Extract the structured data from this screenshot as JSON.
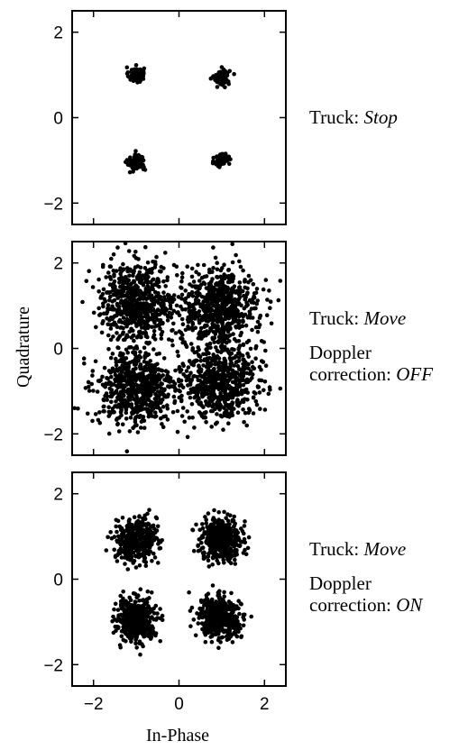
{
  "chart_data": [
    {
      "type": "scatter",
      "xlim": [
        -2.5,
        2.5
      ],
      "ylim": [
        -2.5,
        2.5
      ],
      "yticks": [
        -2,
        0,
        2
      ],
      "xticks": [
        -2,
        0,
        2
      ],
      "show_xtick_labels": false,
      "grid": false,
      "clusters": [
        {
          "x": -1.0,
          "y": 1.0,
          "spread": 0.09,
          "n": 90
        },
        {
          "x": 1.0,
          "y": 0.95,
          "spread": 0.09,
          "n": 90
        },
        {
          "x": -1.0,
          "y": -1.05,
          "spread": 0.1,
          "n": 90
        },
        {
          "x": 1.0,
          "y": -1.0,
          "spread": 0.08,
          "n": 90
        }
      ],
      "annotation": {
        "prefix": "Truck: ",
        "state": "Stop",
        "line2": "",
        "line3_prefix": "",
        "line3_state": ""
      }
    },
    {
      "type": "scatter",
      "xlim": [
        -2.5,
        2.5
      ],
      "ylim": [
        -2.5,
        2.5
      ],
      "yticks": [
        -2,
        0,
        2
      ],
      "xticks": [
        -2,
        0,
        2
      ],
      "show_xtick_labels": false,
      "grid": false,
      "clusters": [
        {
          "x": -0.95,
          "y": 1.1,
          "spread": 0.45,
          "n": 650
        },
        {
          "x": 0.95,
          "y": 0.95,
          "spread": 0.45,
          "n": 650
        },
        {
          "x": -1.0,
          "y": -0.95,
          "spread": 0.45,
          "n": 650
        },
        {
          "x": 0.95,
          "y": -0.75,
          "spread": 0.45,
          "n": 650
        }
      ],
      "annotation": {
        "prefix": "Truck: ",
        "state": "Move",
        "line2": "Doppler",
        "line3_prefix": "correction: ",
        "line3_state": "OFF"
      }
    },
    {
      "type": "scatter",
      "xlim": [
        -2.5,
        2.5
      ],
      "ylim": [
        -2.5,
        2.5
      ],
      "yticks": [
        -2,
        0,
        2
      ],
      "xticks": [
        -2,
        0,
        2
      ],
      "show_xtick_labels": true,
      "grid": false,
      "clusters": [
        {
          "x": -1.0,
          "y": 0.9,
          "spread": 0.24,
          "n": 420
        },
        {
          "x": 1.0,
          "y": 0.95,
          "spread": 0.24,
          "n": 420
        },
        {
          "x": -1.0,
          "y": -0.95,
          "spread": 0.24,
          "n": 420
        },
        {
          "x": 0.95,
          "y": -0.9,
          "spread": 0.24,
          "n": 420
        }
      ],
      "annotation": {
        "prefix": "Truck: ",
        "state": "Move",
        "line2": "Doppler",
        "line3_prefix": "correction: ",
        "line3_state": "ON"
      }
    }
  ],
  "ylabel": "Quadrature",
  "xlabel": "In-Phase",
  "point_color": "#000000"
}
